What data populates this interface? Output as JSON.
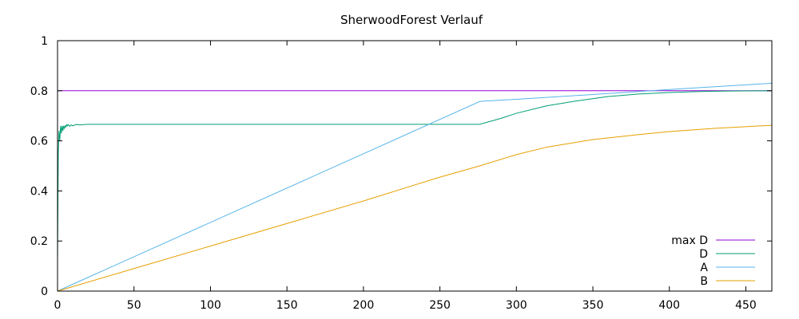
{
  "chart_data": {
    "type": "line",
    "title": "SherwoodForest Verlauf",
    "xlabel": "",
    "ylabel": "",
    "xlim": [
      0,
      467
    ],
    "ylim": [
      0,
      1
    ],
    "x_ticks": [
      0,
      50,
      100,
      150,
      200,
      250,
      300,
      350,
      400,
      450
    ],
    "y_ticks": [
      0,
      0.2,
      0.4,
      0.6,
      0.8,
      1
    ],
    "y_tick_labels": [
      "0",
      "0.2",
      "0.4",
      "0.6",
      "0.8",
      "1"
    ],
    "grid": false,
    "legend_position": "bottom-right",
    "series": [
      {
        "name": "max D",
        "color": "#9400d3",
        "x": [
          0,
          467
        ],
        "y": [
          0.8,
          0.8
        ]
      },
      {
        "name": "D",
        "color": "#009e73",
        "x": [
          0,
          0.5,
          1,
          1.5,
          2,
          2.5,
          3,
          3.5,
          4,
          4.5,
          5,
          5.5,
          6,
          6.5,
          7,
          8,
          9,
          10,
          12,
          15,
          20,
          30,
          50,
          100,
          150,
          200,
          250,
          276,
          290,
          300,
          320,
          340,
          360,
          380,
          400,
          420,
          440,
          467
        ],
        "y": [
          0.12,
          0.55,
          0.64,
          0.6,
          0.66,
          0.63,
          0.66,
          0.64,
          0.66,
          0.65,
          0.66,
          0.655,
          0.665,
          0.66,
          0.665,
          0.658,
          0.664,
          0.66,
          0.665,
          0.664,
          0.666,
          0.666,
          0.666,
          0.666,
          0.666,
          0.666,
          0.666,
          0.666,
          0.69,
          0.71,
          0.74,
          0.76,
          0.777,
          0.787,
          0.793,
          0.797,
          0.799,
          0.8
        ]
      },
      {
        "name": "A",
        "color": "#56b4e9",
        "x": [
          0,
          276,
          280,
          300,
          350,
          400,
          467
        ],
        "y": [
          0,
          0.757,
          0.759,
          0.766,
          0.785,
          0.805,
          0.83
        ]
      },
      {
        "name": "B",
        "color": "#e69f00",
        "x": [
          0,
          50,
          100,
          150,
          200,
          250,
          276,
          300,
          320,
          350,
          380,
          400,
          430,
          467
        ],
        "y": [
          0,
          0.09,
          0.18,
          0.27,
          0.36,
          0.455,
          0.5,
          0.545,
          0.575,
          0.605,
          0.625,
          0.637,
          0.65,
          0.662
        ]
      }
    ]
  }
}
